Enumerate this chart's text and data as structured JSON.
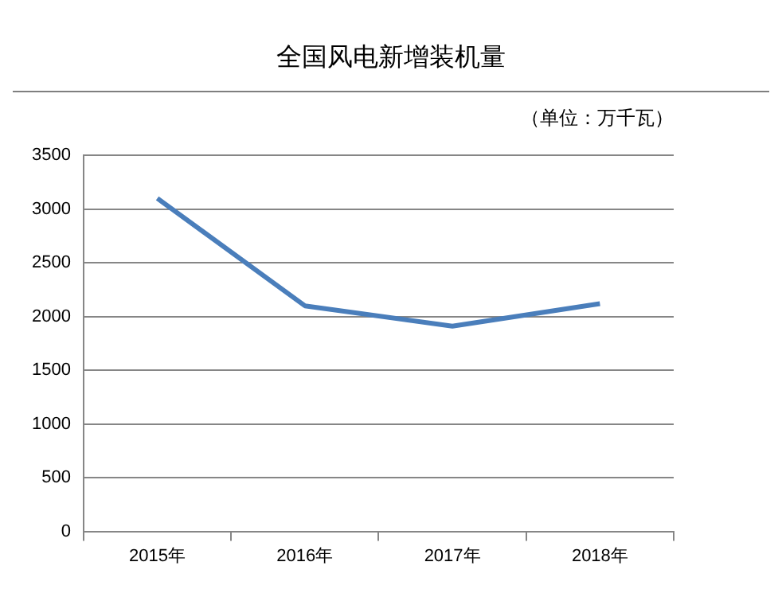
{
  "chart_data": {
    "type": "line",
    "title": "全国风电新增装机量",
    "annotations": [
      "（单位：万千瓦）"
    ],
    "categories": [
      "2015年",
      "2016年",
      "2017年",
      "2018年"
    ],
    "series": [
      {
        "color": "#4a7ebb",
        "values": [
          3100,
          2100,
          1910,
          2120
        ]
      }
    ],
    "ylim": [
      0,
      3500
    ],
    "yticks": [
      0,
      500,
      1000,
      1500,
      2000,
      2500,
      3000,
      3500
    ],
    "grid": "y",
    "legend": false,
    "marker": "none",
    "line_style": "solid"
  }
}
